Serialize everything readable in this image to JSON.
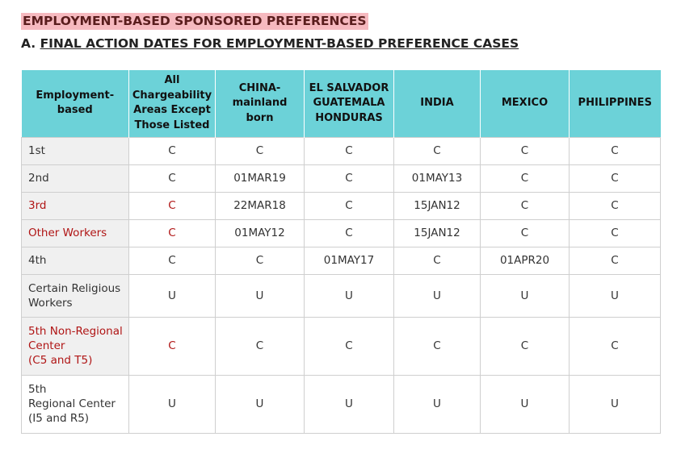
{
  "title": "EMPLOYMENT-BASED SPONSORED PREFERENCES",
  "subtitle_prefix": "A.",
  "subtitle": "FINAL ACTION DATES FOR EMPLOYMENT-BASED PREFERENCE CASES",
  "header": {
    "category": [
      "Employment-",
      "based"
    ],
    "all": [
      "All",
      "Chargeability",
      "Areas Except",
      "Those Listed"
    ],
    "china": [
      "CHINA-",
      "mainland",
      "born"
    ],
    "elsalvador": [
      "EL SALVADOR",
      "GUATEMALA",
      "HONDURAS"
    ],
    "india": "INDIA",
    "mexico": "MEXICO",
    "philippines": "PHILIPPINES"
  },
  "rows": [
    {
      "label": [
        "1st"
      ],
      "cells": [
        "C",
        "C",
        "C",
        "C",
        "C",
        "C"
      ]
    },
    {
      "label": [
        "2nd"
      ],
      "cells": [
        "C",
        "01MAR19",
        "C",
        "01MAY13",
        "C",
        "C"
      ]
    },
    {
      "label": [
        "3rd"
      ],
      "cells": [
        "C",
        "22MAR18",
        "C",
        "15JAN12",
        "C",
        "C"
      ]
    },
    {
      "label": [
        "Other Workers"
      ],
      "cells": [
        "C",
        "01MAY12",
        "C",
        "15JAN12",
        "C",
        "C"
      ]
    },
    {
      "label": [
        "4th"
      ],
      "cells": [
        "C",
        "C",
        "01MAY17",
        "C",
        "01APR20",
        "C"
      ]
    },
    {
      "label": [
        "Certain Religious",
        "Workers"
      ],
      "cells": [
        "U",
        "U",
        "U",
        "U",
        "U",
        "U"
      ]
    },
    {
      "label": [
        "5th Non-Regional",
        "Center",
        "(C5 and T5)"
      ],
      "cells": [
        "C",
        "C",
        "C",
        "C",
        "C",
        "C"
      ]
    },
    {
      "label": [
        "5th",
        "Regional Center",
        "(I5 and R5)"
      ],
      "cells": [
        "U",
        "U",
        "U",
        "U",
        "U",
        "U"
      ]
    }
  ],
  "colors": {
    "header_bg": "#6cd2d8",
    "title_highlight": "#f6b9bf",
    "red_text": "#b01515"
  }
}
